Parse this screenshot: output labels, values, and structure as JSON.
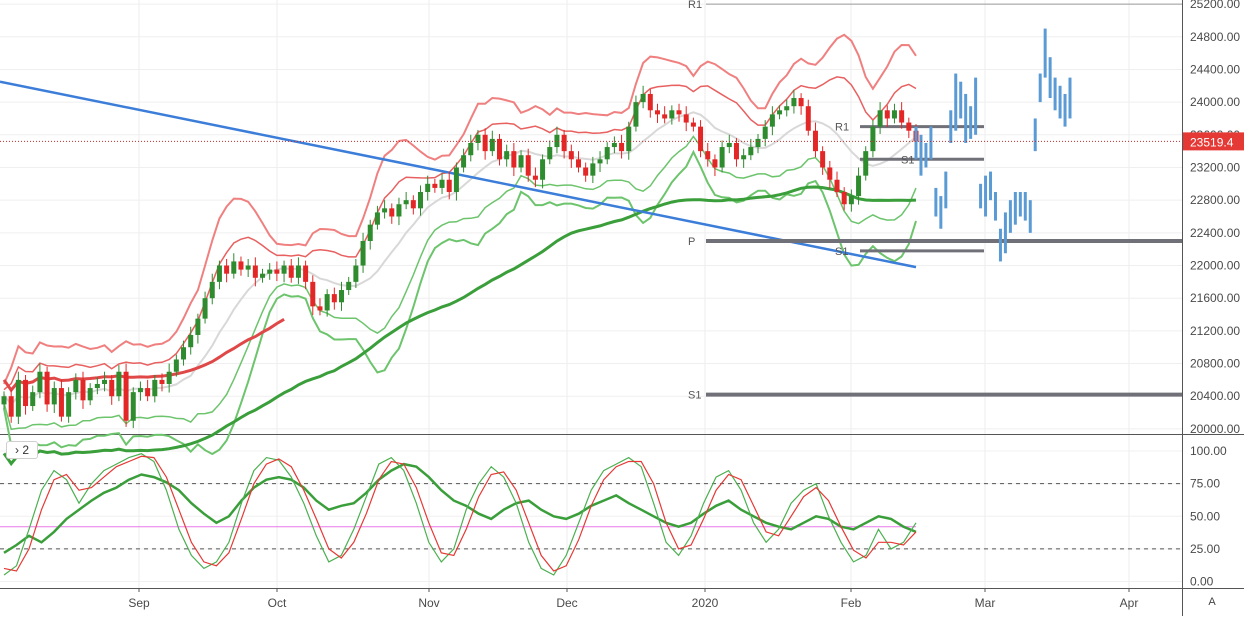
{
  "price_tag": "23519.4",
  "pane_toggle_label": "› 2",
  "auto_scale_label": "A",
  "colors": {
    "up": "#2e8b2e",
    "down": "#e32626",
    "upper_band_outer": "#f08080",
    "upper_band_inner": "#e86060",
    "lower_band": "#6cc46c",
    "ma_long": "#3a9e3a",
    "ma_red": "#e04848",
    "ma_grey": "#d8d8d8",
    "trendline": "#3b7dd8",
    "projection": "#5b9bd5",
    "pivot": "#707078",
    "stoch_fast": "#4caf50",
    "stoch_slow": "#e53935",
    "rsi": "#3a9e3a",
    "midline": "#e879e8",
    "price_line": "#c62828"
  },
  "chart_data": [
    {
      "type": "candlestick",
      "x_labels": [
        "Sep",
        "Oct",
        "Nov",
        "Dec",
        "2020",
        "Feb",
        "Mar",
        "Apr"
      ],
      "y_ticks": [
        20000,
        20400,
        20800,
        21200,
        21600,
        22000,
        22400,
        22800,
        23200,
        23600,
        24000,
        24400,
        24800,
        25200
      ],
      "ylim": [
        19950,
        25250
      ],
      "last_price": 23519.4,
      "pivot_labels": [
        {
          "label": "R1",
          "price": 25200
        },
        {
          "label": "P",
          "price": 22300
        },
        {
          "label": "S1",
          "price": 20420
        },
        {
          "label": "R1",
          "price": 23700
        },
        {
          "label": "S1",
          "price": 22180
        },
        {
          "label": "S1",
          "price": 23300
        }
      ],
      "closes": [
        20400,
        20150,
        20600,
        20280,
        20450,
        20700,
        20300,
        20500,
        20150,
        20450,
        20600,
        20350,
        20500,
        20550,
        20600,
        20400,
        20700,
        20100,
        20450,
        20500,
        20400,
        20600,
        20550,
        20700,
        20850,
        21000,
        21150,
        21350,
        21600,
        21800,
        22000,
        21900,
        22050,
        21950,
        22000,
        21850,
        21900,
        21950,
        21900,
        22000,
        21850,
        22000,
        21800,
        21500,
        21450,
        21650,
        21550,
        21700,
        21800,
        22000,
        22300,
        22500,
        22650,
        22700,
        22600,
        22750,
        22800,
        22700,
        22900,
        23000,
        22950,
        23050,
        22900,
        23200,
        23350,
        23500,
        23600,
        23400,
        23550,
        23300,
        23400,
        23200,
        23350,
        23100,
        23050,
        23300,
        23450,
        23600,
        23400,
        23300,
        23200,
        23100,
        23250,
        23300,
        23450,
        23500,
        23400,
        23700,
        24000,
        24100,
        23900,
        23850,
        23800,
        23900,
        23850,
        23750,
        23700,
        23400,
        23300,
        23200,
        23450,
        23500,
        23300,
        23350,
        23450,
        23550,
        23700,
        23850,
        23900,
        23950,
        24050,
        23950,
        23650,
        23400,
        23200,
        23050,
        22900,
        22750,
        22850,
        23100,
        23400,
        23700,
        23900,
        23800,
        23900,
        23750,
        23650,
        23519.4
      ],
      "trendline": [
        [
          24250,
          21980
        ]
      ],
      "series": [
        {
          "name": "",
          "role": "upper-band-outer"
        },
        {
          "name": "",
          "role": "upper-band-inner"
        },
        {
          "name": "",
          "role": "lower-band-outer"
        },
        {
          "name": "",
          "role": "lower-band-inner"
        }
      ],
      "projection_bars": [
        {
          "low": 23300,
          "high": 23700
        },
        {
          "low": 23100,
          "high": 23600
        },
        {
          "low": 23200,
          "high": 23500
        },
        {
          "low": 23300,
          "high": 23700
        },
        {
          "low": 22600,
          "high": 22950
        },
        {
          "low": 22450,
          "high": 22850
        },
        {
          "low": 22700,
          "high": 23150
        },
        {
          "low": 23500,
          "high": 23900
        },
        {
          "low": 23650,
          "high": 24350
        },
        {
          "low": 23800,
          "high": 24250
        },
        {
          "low": 23500,
          "high": 24100
        },
        {
          "low": 23550,
          "high": 23950
        },
        {
          "low": 23600,
          "high": 24300
        },
        {
          "low": 22700,
          "high": 23000
        },
        {
          "low": 22600,
          "high": 23100
        },
        {
          "low": 22800,
          "high": 23150
        },
        {
          "low": 22550,
          "high": 22900
        },
        {
          "low": 22050,
          "high": 22450
        },
        {
          "low": 22150,
          "high": 22650
        },
        {
          "low": 22400,
          "high": 22800
        },
        {
          "low": 22500,
          "high": 22900
        },
        {
          "low": 22600,
          "high": 22900
        },
        {
          "low": 22550,
          "high": 22900
        },
        {
          "low": 22400,
          "high": 22800
        },
        {
          "low": 23400,
          "high": 23800
        },
        {
          "low": 24000,
          "high": 24350
        },
        {
          "low": 24300,
          "high": 24900
        },
        {
          "low": 24050,
          "high": 24550
        },
        {
          "low": 23900,
          "high": 24300
        },
        {
          "low": 23800,
          "high": 24200
        },
        {
          "low": 23700,
          "high": 24100
        },
        {
          "low": 23800,
          "high": 24300
        }
      ]
    },
    {
      "type": "line",
      "y_ticks": [
        0,
        25,
        50,
        75,
        100
      ],
      "ylim": [
        -5,
        110
      ],
      "dashed_levels": [
        25,
        75
      ],
      "midline": 42,
      "series": [
        {
          "name": "",
          "values": [
            5,
            12,
            40,
            70,
            85,
            78,
            60,
            75,
            85,
            90,
            95,
            98,
            92,
            70,
            40,
            20,
            10,
            15,
            30,
            60,
            85,
            95,
            93,
            80,
            60,
            35,
            15,
            20,
            40,
            65,
            90,
            95,
            85,
            60,
            30,
            15,
            25,
            55,
            75,
            88,
            80,
            60,
            30,
            10,
            5,
            20,
            45,
            70,
            85,
            90,
            95,
            88,
            60,
            30,
            20,
            35,
            60,
            80,
            85,
            70,
            45,
            30,
            40,
            60,
            70,
            75,
            50,
            30,
            15,
            20,
            40,
            25,
            30,
            45
          ]
        },
        {
          "name": "",
          "values": [
            10,
            8,
            25,
            55,
            78,
            82,
            70,
            72,
            80,
            88,
            92,
            96,
            95,
            80,
            55,
            30,
            15,
            12,
            22,
            48,
            75,
            90,
            94,
            88,
            70,
            48,
            25,
            18,
            30,
            52,
            78,
            92,
            90,
            72,
            45,
            22,
            20,
            40,
            65,
            82,
            84,
            70,
            45,
            20,
            8,
            12,
            32,
            58,
            78,
            88,
            92,
            92,
            75,
            45,
            25,
            28,
            48,
            70,
            82,
            78,
            58,
            38,
            35,
            50,
            65,
            72,
            62,
            42,
            24,
            18,
            30,
            30,
            28,
            38
          ]
        },
        {
          "name": "",
          "values": [
            22,
            28,
            35,
            30,
            38,
            48,
            55,
            62,
            68,
            72,
            78,
            82,
            80,
            76,
            70,
            60,
            52,
            45,
            50,
            62,
            72,
            78,
            80,
            78,
            72,
            62,
            55,
            58,
            60,
            68,
            78,
            85,
            90,
            88,
            80,
            70,
            62,
            58,
            52,
            48,
            55,
            60,
            62,
            55,
            50,
            48,
            52,
            58,
            62,
            66,
            60,
            55,
            50,
            45,
            42,
            45,
            52,
            58,
            62,
            55,
            50,
            45,
            42,
            40,
            45,
            50,
            48,
            42,
            40,
            45,
            50,
            48,
            42,
            38
          ]
        }
      ]
    }
  ]
}
